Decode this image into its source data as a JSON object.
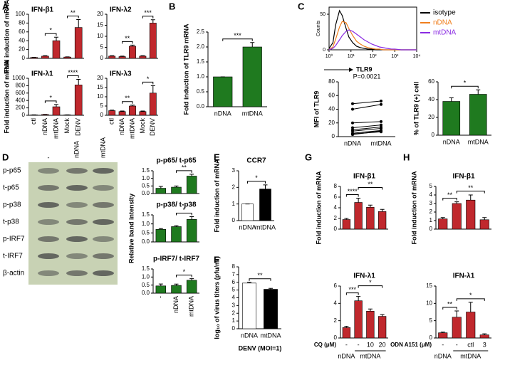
{
  "panel_letters": [
    "A",
    "B",
    "C",
    "D",
    "E",
    "F",
    "G",
    "H"
  ],
  "blot": {
    "columns": [
      "-",
      "nDNA",
      "mtDNA"
    ],
    "rows": [
      "p-p65",
      "t-p65",
      "p-p38",
      "t-p38",
      "p-IRF7",
      "t-IRF7",
      "β-actin"
    ]
  },
  "chart_data": [
    {
      "type": "bar",
      "title": "IFN-β1",
      "ylabel": "Fold induction of mRNA",
      "categories": [
        null,
        null,
        null,
        null,
        null
      ],
      "values": [
        2,
        5,
        40,
        3,
        70
      ],
      "errors": [
        0.5,
        1,
        8,
        0.5,
        18
      ],
      "color": "#c0282d",
      "ylim": [
        0,
        100
      ],
      "yticks": [
        0,
        20,
        40,
        60,
        80,
        100
      ],
      "annotations": [
        {
          "text": "*",
          "span": [
            1,
            2
          ]
        },
        {
          "text": "**",
          "span": [
            3,
            4
          ]
        }
      ]
    },
    {
      "type": "bar",
      "title": "IFN-λ2",
      "categories": [
        null,
        null,
        null,
        null,
        null
      ],
      "values": [
        1,
        0.8,
        5.5,
        1,
        16
      ],
      "errors": [
        0.2,
        0.2,
        0.5,
        0.2,
        1.5
      ],
      "color": "#c0282d",
      "ylim": [
        0,
        20
      ],
      "yticks": [
        0,
        5,
        10,
        15,
        20
      ],
      "annotations": [
        {
          "text": "**",
          "span": [
            1,
            2
          ]
        },
        {
          "text": "***",
          "span": [
            3,
            4
          ]
        }
      ]
    },
    {
      "type": "bar",
      "title": "IFN-λ1",
      "ylabel": "Fold induction of mRNA",
      "categories": [
        "ctl",
        "nDNA",
        "mtDNA",
        "Mock",
        "DENV"
      ],
      "label_rotation": -90,
      "values": [
        10,
        20,
        230,
        10,
        820
      ],
      "errors": [
        3,
        5,
        60,
        3,
        150
      ],
      "color": "#c0282d",
      "ylim": [
        0,
        1000
      ],
      "yticks": [
        0,
        200,
        400,
        600,
        800,
        1000
      ],
      "annotations": [
        {
          "text": "*",
          "span": [
            1,
            2
          ]
        },
        {
          "text": "****",
          "span": [
            3,
            4
          ]
        }
      ]
    },
    {
      "type": "bar",
      "title": "IFN-λ3",
      "categories": [
        "ctl",
        "nDNA",
        "mtDNA",
        "Mock",
        "DENV"
      ],
      "label_rotation": -90,
      "values": [
        2.5,
        2,
        5,
        2,
        12
      ],
      "errors": [
        0.3,
        0.3,
        0.5,
        0.3,
        4
      ],
      "color": "#c0282d",
      "ylim": [
        0,
        20
      ],
      "yticks": [
        0,
        5,
        10,
        15,
        20
      ],
      "annotations": [
        {
          "text": "**",
          "span": [
            1,
            2
          ]
        },
        {
          "text": "*",
          "span": [
            3,
            4
          ]
        }
      ]
    },
    {
      "type": "bar",
      "ylabel": "Fold induction of TLR9 mRNA",
      "categories": [
        "nDNA",
        "mtDNA"
      ],
      "values": [
        1,
        2
      ],
      "errors": [
        0,
        0.15
      ],
      "color": "#1f7a1f",
      "ylim": [
        0,
        2.5
      ],
      "yticks": [
        {
          "value": 0,
          "label": "0.0"
        },
        {
          "value": 0.5,
          "label": "0.5"
        },
        {
          "value": 1,
          "label": "1.0"
        },
        {
          "value": 1.5,
          "label": "1.5"
        },
        {
          "value": 2,
          "label": "2.0"
        },
        {
          "value": 2.5,
          "label": "2.5"
        }
      ],
      "annotations": [
        {
          "text": "***",
          "span": [
            0,
            1
          ]
        }
      ]
    },
    {
      "type": "line",
      "xlog": true,
      "ylabel": "Counts",
      "xlabel": "TLR9",
      "x": [
        1,
        1.5,
        2,
        3,
        4,
        6,
        8,
        12,
        18,
        27,
        40,
        60,
        90,
        135,
        200,
        300,
        450,
        700,
        1000,
        2000,
        5000,
        10000
      ],
      "series": [
        {
          "name": "isotype",
          "color": "#000000",
          "values": [
            2,
            10,
            35,
            55,
            48,
            30,
            18,
            10,
            5,
            3,
            2,
            1,
            1,
            0,
            0,
            0,
            0,
            0,
            0,
            0,
            0,
            0
          ]
        },
        {
          "name": "nDNA",
          "color": "#f07f1e",
          "values": [
            0,
            4,
            15,
            32,
            40,
            38,
            30,
            20,
            12,
            8,
            5,
            3,
            2,
            1,
            1,
            0,
            0,
            0,
            0,
            0,
            0,
            0
          ]
        },
        {
          "name": "mtDNA",
          "color": "#8a2be2",
          "values": [
            0,
            2,
            6,
            14,
            20,
            26,
            28,
            26,
            22,
            18,
            14,
            11,
            8,
            6,
            4,
            3,
            2,
            1,
            1,
            0,
            0,
            0
          ]
        }
      ],
      "xlim": [
        1,
        10000
      ],
      "xticks": [
        {
          "value": 1,
          "label": "10⁰"
        },
        {
          "value": 10,
          "label": "10¹"
        },
        {
          "value": 100,
          "label": "10²"
        },
        {
          "value": 1000,
          "label": "10³"
        },
        {
          "value": 10000,
          "label": "10⁴"
        }
      ],
      "ylim": [
        0,
        60
      ],
      "yticks": [
        0,
        50
      ]
    },
    {
      "type": "paired",
      "ylabel": "MFI of TLR9",
      "categories": [
        "nDNA",
        "mtDNA"
      ],
      "series": [
        {
          "values": [
            48,
            52
          ]
        },
        {
          "values": [
            40,
            47
          ]
        },
        {
          "values": [
            20,
            22
          ]
        },
        {
          "values": [
            13,
            17
          ]
        },
        {
          "values": [
            10,
            14
          ]
        },
        {
          "values": [
            8,
            12
          ]
        },
        {
          "values": [
            5,
            9
          ]
        },
        {
          "values": [
            4,
            7
          ]
        },
        {
          "values": [
            3,
            8
          ]
        }
      ],
      "ylim": [
        0,
        80
      ],
      "yticks": [
        0,
        20,
        40,
        60,
        80
      ],
      "annotations": [
        {
          "text": "P=0.0021",
          "span": [
            0,
            1
          ]
        }
      ]
    },
    {
      "type": "bar",
      "ylabel": "% of TLR9 (+) cell",
      "categories": [
        "nDNA",
        "mtDNA"
      ],
      "values": [
        38,
        46
      ],
      "errors": [
        4,
        5
      ],
      "color": "#1f7a1f",
      "ylim": [
        0,
        60
      ],
      "yticks": [
        0,
        20,
        40,
        60
      ],
      "annotations": [
        {
          "text": "*",
          "span": [
            0,
            1
          ]
        }
      ]
    },
    {
      "type": "bar",
      "title": "p-p65/ t-p65",
      "categories": [
        null,
        null,
        null
      ],
      "values": [
        0.35,
        0.42,
        1.15
      ],
      "errors": [
        0.12,
        0.08,
        0.12
      ],
      "color": "#1f7a1f",
      "ylim": [
        0,
        1.5
      ],
      "yticks": [
        {
          "value": 0,
          "label": "0.0"
        },
        {
          "value": 0.5,
          "label": "0.5"
        },
        {
          "value": 1,
          "label": "1.0"
        },
        {
          "value": 1.5,
          "label": "1.5"
        }
      ],
      "annotations": [
        {
          "text": "**",
          "span": [
            1,
            2
          ]
        }
      ]
    },
    {
      "type": "bar",
      "title": "p-p38/ t-p38",
      "ylabel": "Relative band intensity",
      "categories": [
        null,
        null,
        null
      ],
      "values": [
        0.7,
        0.85,
        1.25
      ],
      "errors": [
        0.04,
        0.05,
        0.15
      ],
      "color": "#1f7a1f",
      "ylim": [
        0,
        1.5
      ],
      "yticks": [
        {
          "value": 0,
          "label": "0.0"
        },
        {
          "value": 0.5,
          "label": "0.5"
        },
        {
          "value": 1,
          "label": "1.0"
        },
        {
          "value": 1.5,
          "label": "1.5"
        }
      ],
      "annotations": [
        {
          "text": "*",
          "span": [
            1,
            2
          ]
        }
      ]
    },
    {
      "type": "bar",
      "title": "p-IRF7/ t-IRF7",
      "categories": [
        "-",
        "nDNA",
        "mtDNA"
      ],
      "label_rotation": -90,
      "values": [
        0.45,
        0.48,
        0.8
      ],
      "errors": [
        0.12,
        0.08,
        0.1
      ],
      "color": "#1f7a1f",
      "ylim": [
        0,
        1.5
      ],
      "yticks": [
        {
          "value": 0,
          "label": "0.0"
        },
        {
          "value": 0.5,
          "label": "0.5"
        },
        {
          "value": 1,
          "label": "1.0"
        },
        {
          "value": 1.5,
          "label": "1.5"
        }
      ],
      "annotations": [
        {
          "text": "*",
          "span": [
            1,
            2
          ]
        }
      ]
    },
    {
      "type": "bar",
      "title": "CCR7",
      "ylabel": "Fold induction of mRNA",
      "categories": [
        "nDNA",
        "mtDNA"
      ],
      "values": [
        1,
        1.9
      ],
      "errors": [
        0,
        0.25
      ],
      "colors": [
        "#ffffff",
        "#000000"
      ],
      "ylim": [
        0,
        3
      ],
      "yticks": [
        0,
        1,
        2,
        3
      ],
      "annotations": [
        {
          "text": "*",
          "span": [
            0,
            1
          ]
        }
      ]
    },
    {
      "type": "bar",
      "ylabel": "log₁₀ of virus titers (pfu/ml)",
      "xlabel": "DENV (MOI=1)",
      "categories": [
        "nDNA",
        "mtDNA"
      ],
      "values": [
        5.9,
        5.1
      ],
      "errors": [
        0.1,
        0.12
      ],
      "colors": [
        "#ffffff",
        "#000000"
      ],
      "ylim": [
        0,
        8
      ],
      "yticks": [
        0,
        1,
        2,
        3,
        4,
        5,
        6,
        7,
        8
      ],
      "annotations": [
        {
          "text": "**",
          "span": [
            0,
            1
          ]
        }
      ]
    },
    {
      "type": "bar",
      "title": "IFN-β1",
      "ylabel": "Fold induction of mRNA",
      "categories": [
        null,
        null,
        null,
        null
      ],
      "values": [
        1.8,
        5,
        4.1,
        3.3
      ],
      "errors": [
        0.2,
        0.8,
        0.4,
        0.4
      ],
      "color": "#c0282d",
      "ylim": [
        0,
        8
      ],
      "yticks": [
        0,
        2,
        4,
        6,
        8
      ],
      "annotations": [
        {
          "text": "****",
          "span": [
            0,
            1
          ]
        },
        {
          "text": "**",
          "span": [
            1,
            3
          ]
        }
      ]
    },
    {
      "type": "bar",
      "title": "IFN-λ1",
      "categories": [
        "-",
        "-",
        "10",
        "20"
      ],
      "category_row_label": "CQ (μM)",
      "groups": [
        {
          "label": "nDNA",
          "span": [
            0,
            0
          ]
        },
        {
          "label": "mtDNA",
          "span": [
            1,
            3
          ]
        }
      ],
      "values": [
        1.2,
        4.3,
        3.1,
        2.5
      ],
      "errors": [
        0.15,
        0.5,
        0.25,
        0.2
      ],
      "color": "#c0282d",
      "ylim": [
        0,
        6
      ],
      "yticks": [
        0,
        2,
        4,
        6
      ],
      "annotations": [
        {
          "text": "***",
          "span": [
            0,
            1
          ]
        },
        {
          "text": "*",
          "span": [
            1,
            3
          ]
        }
      ]
    },
    {
      "type": "bar",
      "title": "IFN-β1",
      "ylabel": "Fold induction of mRNA",
      "categories": [
        null,
        null,
        null,
        null
      ],
      "values": [
        1.2,
        3,
        3.4,
        1.1
      ],
      "errors": [
        0.15,
        0.2,
        0.6,
        0.25
      ],
      "color": "#c0282d",
      "ylim": [
        0,
        5
      ],
      "yticks": [
        0,
        1,
        2,
        3,
        4,
        5
      ],
      "annotations": [
        {
          "text": "**",
          "span": [
            0,
            1
          ]
        },
        {
          "text": "**",
          "span": [
            1,
            3
          ]
        }
      ]
    },
    {
      "type": "bar",
      "title": "IFN-λ1",
      "categories": [
        "-",
        "-",
        "ctl",
        "3"
      ],
      "category_row_label": "ODN A151 (μM)",
      "groups": [
        {
          "label": "nDNA",
          "span": [
            0,
            0
          ]
        },
        {
          "label": "mtDNA",
          "span": [
            1,
            3
          ]
        }
      ],
      "values": [
        1.5,
        6,
        7.5,
        0.9
      ],
      "errors": [
        0.2,
        1.8,
        2.8,
        0.3
      ],
      "color": "#c0282d",
      "ylim": [
        0,
        15
      ],
      "yticks": [
        0,
        5,
        10,
        15
      ],
      "annotations": [
        {
          "text": "**",
          "span": [
            0,
            1
          ]
        },
        {
          "text": "*",
          "span": [
            1,
            3
          ]
        }
      ]
    }
  ]
}
